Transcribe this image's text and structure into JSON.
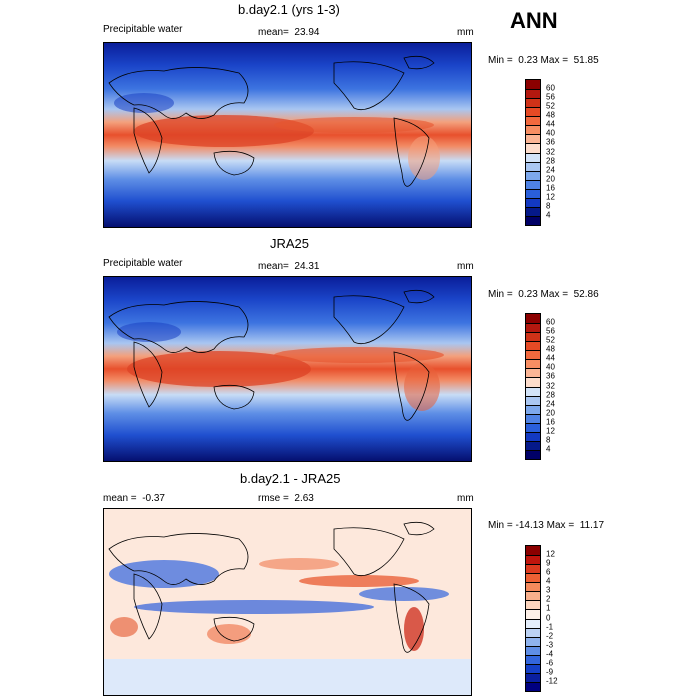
{
  "season": "ANN",
  "units": "mm",
  "panels": [
    {
      "title": "b.day2.1 (yrs 1-3)",
      "left_label": "Precipitable water",
      "stat_label": "mean=",
      "stat_value": "23.94",
      "units": "mm",
      "min_label": "Min =",
      "min_value": "0.23",
      "max_label": "Max =",
      "max_value": "51.85",
      "colorbar_levels": [
        "60",
        "56",
        "52",
        "48",
        "44",
        "40",
        "36",
        "32",
        "28",
        "24",
        "20",
        "16",
        "12",
        "8",
        "4"
      ],
      "colorbar_colors": [
        "#8b0000",
        "#b3180f",
        "#cf3218",
        "#e64a25",
        "#f2693e",
        "#f78e63",
        "#fbb595",
        "#fdddcc",
        "#d2e3f8",
        "#aac7f2",
        "#7da8ec",
        "#4f82e4",
        "#2a5fdb",
        "#1339c2",
        "#05198a",
        "#000066"
      ]
    },
    {
      "title": "JRA25",
      "left_label": "Precipitable water",
      "stat_label": "mean=",
      "stat_value": "24.31",
      "units": "mm",
      "min_label": "Min =",
      "min_value": "0.23",
      "max_label": "Max =",
      "max_value": "52.86",
      "colorbar_levels": [
        "60",
        "56",
        "52",
        "48",
        "44",
        "40",
        "36",
        "32",
        "28",
        "24",
        "20",
        "16",
        "12",
        "8",
        "4"
      ],
      "colorbar_colors": [
        "#8b0000",
        "#b3180f",
        "#cf3218",
        "#e64a25",
        "#f2693e",
        "#f78e63",
        "#fbb595",
        "#fdddcc",
        "#d2e3f8",
        "#aac7f2",
        "#7da8ec",
        "#4f82e4",
        "#2a5fdb",
        "#1339c2",
        "#05198a",
        "#000066"
      ]
    },
    {
      "title": "b.day2.1 - JRA25",
      "mean_label": "mean =",
      "mean_value": "-0.37",
      "rmse_label": "rmse =",
      "rmse_value": "2.63",
      "units": "mm",
      "min_label": "Min =",
      "min_value": "-14.13",
      "max_label": "Max =",
      "max_value": "11.17",
      "colorbar_levels": [
        "12",
        "9",
        "6",
        "4",
        "3",
        "2",
        "1",
        "0",
        "-1",
        "-2",
        "-3",
        "-4",
        "-6",
        "-9",
        "-12"
      ],
      "colorbar_colors": [
        "#8b0000",
        "#c0150d",
        "#dd3a1f",
        "#ee6034",
        "#f58a5c",
        "#f9b08c",
        "#fcd5be",
        "#fdf0e8",
        "#e4eefb",
        "#bcd2f4",
        "#8fb3ee",
        "#5f8ee6",
        "#3366dd",
        "#1540c8",
        "#0a1fa0",
        "#000080"
      ]
    }
  ],
  "chart_data": [
    {
      "type": "heatmap",
      "title": "b.day2.1 (yrs 1-3)",
      "variable": "Precipitable water",
      "units": "mm",
      "mean": 23.94,
      "min": 0.23,
      "max": 51.85,
      "colorbar_levels": [
        4,
        8,
        12,
        16,
        20,
        24,
        28,
        32,
        36,
        40,
        44,
        48,
        52,
        56,
        60
      ]
    },
    {
      "type": "heatmap",
      "title": "JRA25",
      "variable": "Precipitable water",
      "units": "mm",
      "mean": 24.31,
      "min": 0.23,
      "max": 52.86,
      "colorbar_levels": [
        4,
        8,
        12,
        16,
        20,
        24,
        28,
        32,
        36,
        40,
        44,
        48,
        52,
        56,
        60
      ]
    },
    {
      "type": "heatmap",
      "title": "b.day2.1 - JRA25",
      "units": "mm",
      "mean": -0.37,
      "rmse": 2.63,
      "min": -14.13,
      "max": 11.17,
      "colorbar_levels": [
        -12,
        -9,
        -6,
        -4,
        -3,
        -2,
        -1,
        0,
        1,
        2,
        3,
        4,
        6,
        9,
        12
      ]
    }
  ]
}
